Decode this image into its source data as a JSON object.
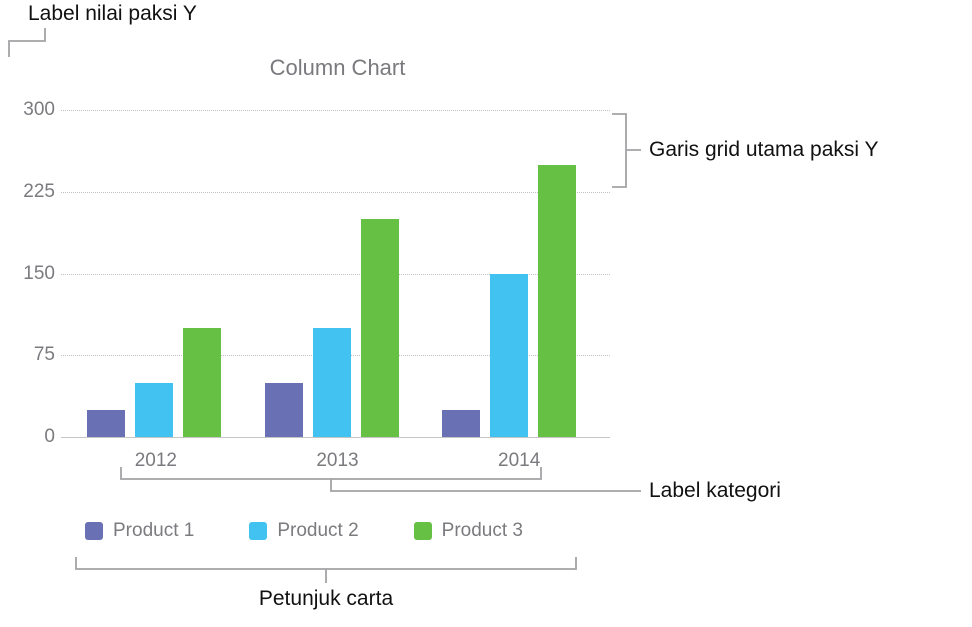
{
  "annotations": {
    "y_value_label": "Label nilai paksi Y",
    "gridline_label": "Garis grid utama paksi Y",
    "category_label": "Label kategori",
    "legend_label": "Petunjuk carta"
  },
  "chart_data": {
    "type": "bar",
    "title": "Column Chart",
    "categories": [
      "2012",
      "2013",
      "2014"
    ],
    "series": [
      {
        "name": "Product 1",
        "color": "#6a70b4",
        "values": [
          25,
          50,
          25
        ]
      },
      {
        "name": "Product 2",
        "color": "#41c2f1",
        "values": [
          50,
          100,
          150
        ]
      },
      {
        "name": "Product 3",
        "color": "#66c043",
        "values": [
          100,
          200,
          250
        ]
      }
    ],
    "ylim": [
      0,
      300
    ],
    "yticks": [
      0,
      75,
      150,
      225,
      300
    ],
    "grid": "dotted horizontal major gridlines",
    "legend_position": "bottom",
    "text_color": "#7b7b7f"
  }
}
